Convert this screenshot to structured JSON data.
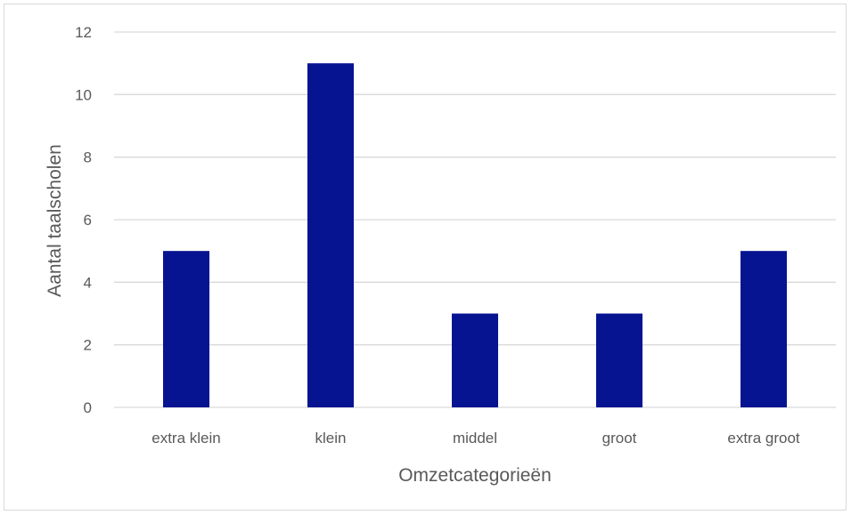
{
  "chart_data": {
    "type": "bar",
    "title": "",
    "xlabel": "Omzetcategorieën",
    "ylabel": "Aantal taalscholen",
    "categories": [
      "extra klein",
      "klein",
      "middel",
      "groot",
      "extra groot"
    ],
    "values": [
      5,
      11,
      3,
      3,
      5
    ],
    "ylim": [
      0,
      12
    ],
    "yticks": [
      0,
      2,
      4,
      6,
      8,
      10,
      12
    ],
    "grid": true,
    "legend": "none",
    "colors": {
      "bar": "#071491",
      "grid": "#d9d9d9",
      "text": "#595959",
      "border": "#d9d9d9"
    }
  }
}
